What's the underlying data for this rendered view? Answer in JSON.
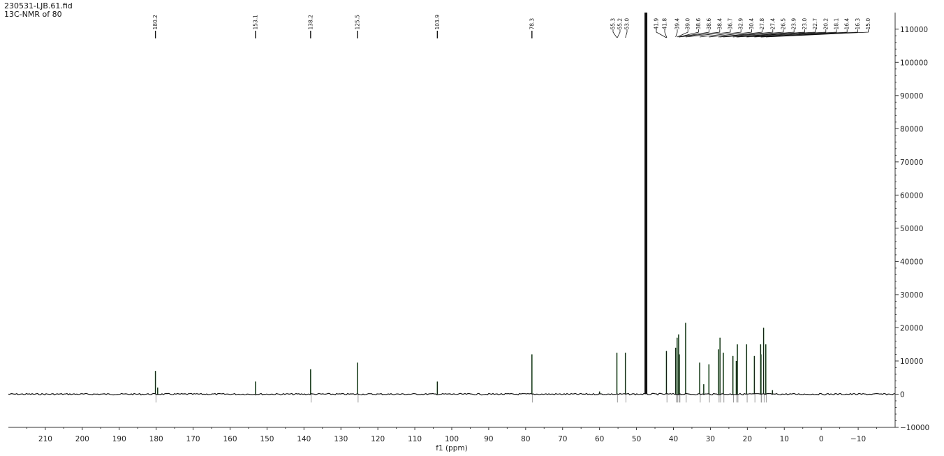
{
  "header": {
    "file_name": "230531-LJB.61.fid",
    "title": "13C-NMR of 80"
  },
  "chart_data": {
    "type": "line",
    "title": "13C-NMR of 80",
    "xlabel": "f1 (ppm)",
    "ylabel": "",
    "xlim": [
      220,
      -20
    ],
    "ylim": [
      -10000,
      115000
    ],
    "x_reversed": true,
    "x_ticks": [
      210,
      200,
      190,
      180,
      170,
      160,
      150,
      140,
      130,
      120,
      110,
      100,
      90,
      80,
      70,
      60,
      50,
      40,
      30,
      20,
      10,
      0,
      -10
    ],
    "y_ticks": [
      -10000,
      0,
      10000,
      20000,
      30000,
      40000,
      50000,
      60000,
      70000,
      80000,
      90000,
      100000,
      110000
    ],
    "y_axis_position": "right",
    "grid": false,
    "peak_labels": [
      "180.2",
      "153.1",
      "138.2",
      "125.5",
      "103.9",
      "78.3",
      "55.3",
      "55.2",
      "53.0",
      "41.9",
      "41.8",
      "39.4",
      "39.0",
      "38.6",
      "38.6",
      "38.4",
      "36.7",
      "32.9",
      "30.4",
      "27.8",
      "27.4",
      "26.5",
      "23.9",
      "23.0",
      "22.7",
      "20.2",
      "18.1",
      "16.4",
      "16.3",
      "15.0"
    ],
    "peaks": [
      {
        "ppm": 180.2,
        "intensity": 7000
      },
      {
        "ppm": 179.6,
        "intensity": 2000
      },
      {
        "ppm": 153.1,
        "intensity": 3800
      },
      {
        "ppm": 138.2,
        "intensity": 7500
      },
      {
        "ppm": 125.5,
        "intensity": 9500
      },
      {
        "ppm": 103.9,
        "intensity": 3800
      },
      {
        "ppm": 78.3,
        "intensity": 12000
      },
      {
        "ppm": 60.0,
        "intensity": 800
      },
      {
        "ppm": 55.3,
        "intensity": 12500
      },
      {
        "ppm": 53.0,
        "intensity": 12500
      },
      {
        "ppm": 47.6,
        "intensity": 115000
      },
      {
        "ppm": 47.3,
        "intensity": 115000
      },
      {
        "ppm": 41.9,
        "intensity": 13000
      },
      {
        "ppm": 39.4,
        "intensity": 14000
      },
      {
        "ppm": 39.0,
        "intensity": 17000
      },
      {
        "ppm": 38.6,
        "intensity": 18000
      },
      {
        "ppm": 38.4,
        "intensity": 12000
      },
      {
        "ppm": 36.7,
        "intensity": 21500
      },
      {
        "ppm": 32.9,
        "intensity": 9500
      },
      {
        "ppm": 31.8,
        "intensity": 3000
      },
      {
        "ppm": 30.4,
        "intensity": 9000
      },
      {
        "ppm": 27.8,
        "intensity": 13500
      },
      {
        "ppm": 27.4,
        "intensity": 17000
      },
      {
        "ppm": 26.5,
        "intensity": 12500
      },
      {
        "ppm": 23.9,
        "intensity": 11500
      },
      {
        "ppm": 23.0,
        "intensity": 10000
      },
      {
        "ppm": 22.7,
        "intensity": 15000
      },
      {
        "ppm": 20.2,
        "intensity": 15000
      },
      {
        "ppm": 18.1,
        "intensity": 11500
      },
      {
        "ppm": 16.4,
        "intensity": 15000
      },
      {
        "ppm": 16.3,
        "intensity": 12000
      },
      {
        "ppm": 15.6,
        "intensity": 20000
      },
      {
        "ppm": 15.0,
        "intensity": 15000
      },
      {
        "ppm": 13.2,
        "intensity": 1200
      }
    ],
    "colors": {
      "spectrum": "#111111",
      "peak_fill": "#2e7d32",
      "integral_ghost": "#9a9a9a",
      "axis": "#333333"
    }
  }
}
